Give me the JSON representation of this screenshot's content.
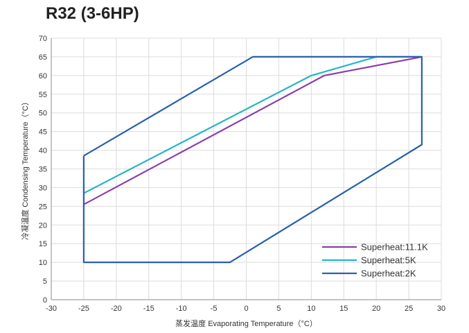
{
  "chart_data": {
    "type": "line",
    "title": "R32 (3-6HP)",
    "xlabel": "蒸发温度 Evaporating Temperature（°C）",
    "ylabel": "冷凝温度 Condensing Temperature（°C）",
    "xlim": [
      -30,
      30
    ],
    "ylim": [
      0,
      70
    ],
    "xticks": [
      -30,
      -25,
      -20,
      -15,
      -10,
      -5,
      0,
      5,
      10,
      15,
      20,
      25,
      30
    ],
    "yticks": [
      0,
      5,
      10,
      15,
      20,
      25,
      30,
      35,
      40,
      45,
      50,
      55,
      60,
      65,
      70
    ],
    "grid": true,
    "legend_position": "bottom-right",
    "series": [
      {
        "name": "Superheat:11.1K",
        "color": "#8a3fa8",
        "x": [
          -25,
          12,
          27,
          27
        ],
        "y": [
          25.5,
          60,
          65,
          65
        ]
      },
      {
        "name": "Superheat:5K",
        "color": "#25b5c6",
        "x": [
          -25,
          10,
          20,
          27
        ],
        "y": [
          28.5,
          60,
          65,
          65
        ]
      },
      {
        "name": "Superheat:2K",
        "color": "#2a5fab",
        "closed": true,
        "x": [
          -25,
          1,
          27,
          27,
          -2.5,
          -25,
          -25
        ],
        "y": [
          38.5,
          65,
          65,
          41.5,
          10,
          10,
          38.5
        ]
      }
    ]
  }
}
